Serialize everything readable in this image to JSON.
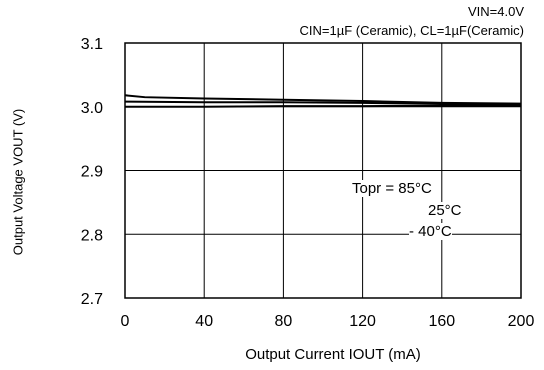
{
  "chart_data": {
    "type": "line",
    "conditions": [
      "VIN=4.0V",
      "CIN=1µF (Ceramic), CL=1µF(Ceramic)"
    ],
    "xlabel": "Output Current IOUT (mA)",
    "ylabel": "Output Voltage VOUT (V)",
    "xlim": [
      0,
      200
    ],
    "ylim": [
      2.7,
      3.1
    ],
    "xticks": [
      "0",
      "40",
      "80",
      "120",
      "160",
      "200"
    ],
    "yticks": [
      "3.1",
      "3.0",
      "2.9",
      "2.8",
      "2.7"
    ],
    "grid": true,
    "annotations": [
      "Topr = 85°C",
      "25°C",
      "- 40°C"
    ],
    "series": [
      {
        "name": "85°C",
        "x": [
          0,
          10,
          40,
          80,
          120,
          160,
          200
        ],
        "y": [
          3.018,
          3.015,
          3.013,
          3.011,
          3.009,
          3.006,
          3.005
        ]
      },
      {
        "name": "25°C",
        "x": [
          0,
          40,
          80,
          120,
          160,
          200
        ],
        "y": [
          3.008,
          3.007,
          3.007,
          3.006,
          3.005,
          3.004
        ]
      },
      {
        "name": "-40°C",
        "x": [
          0,
          40,
          80,
          120,
          160,
          200
        ],
        "y": [
          3.0,
          3.0,
          3.001,
          3.001,
          3.002,
          3.002
        ]
      }
    ],
    "colors": {
      "line": "#000000",
      "grid": "#000000"
    }
  }
}
